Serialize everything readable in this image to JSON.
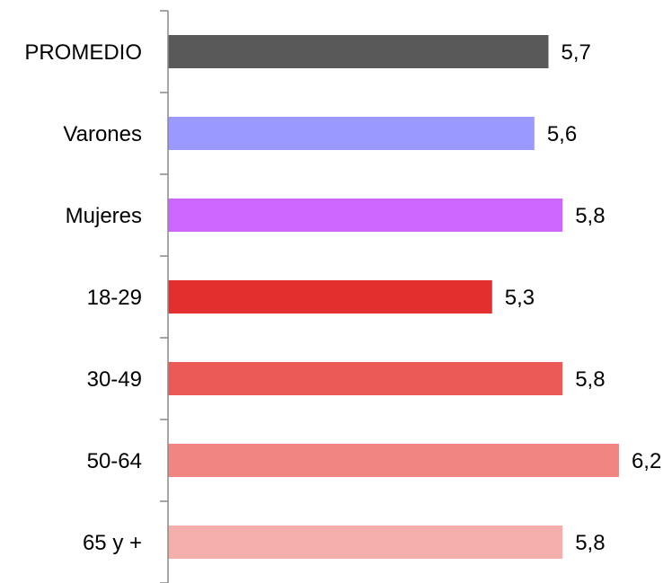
{
  "chart_data": {
    "type": "barh",
    "categories": [
      "PROMEDIO",
      "Varones",
      "Mujeres",
      "18-29",
      "30-49",
      "50-64",
      "65 y +"
    ],
    "values": [
      5.7,
      5.6,
      5.8,
      5.3,
      5.8,
      6.2,
      5.8
    ],
    "value_labels": [
      "5,7",
      "5,6",
      "5,8",
      "5,3",
      "5,8",
      "6,2",
      "5,8"
    ],
    "colors": [
      "#595959",
      "#9999ff",
      "#cc66ff",
      "#e3302f",
      "#eb5a57",
      "#f08581",
      "#f4aeab"
    ],
    "xlim": [
      3,
      6.5
    ]
  }
}
